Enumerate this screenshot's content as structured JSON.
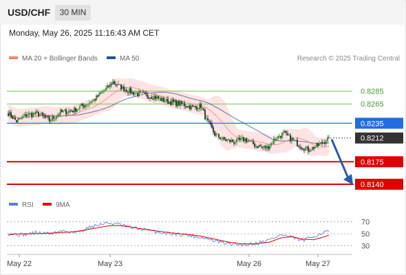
{
  "header": {
    "symbol": "USD/CHF",
    "interval": "30 MIN"
  },
  "timestamp": "Monday, May 26, 2025 11:16:43 AM CET",
  "legend": {
    "ma20_bb": {
      "label": "MA 20 + Bollinger Bands",
      "color": "#f08080"
    },
    "ma50": {
      "label": "MA 50",
      "color": "#2a4f8f"
    }
  },
  "credit": "Research © 2025 Trading Central",
  "rsi_legend": {
    "rsi": {
      "label": "RSI",
      "color": "#5b7fd6"
    },
    "ma9": {
      "label": "9MA",
      "color": "#dd0000"
    }
  },
  "chart_data": {
    "type": "candlestick",
    "price_range": [
      0.8125,
      0.8322
    ],
    "levels": [
      {
        "label": "0.8285",
        "value": 0.8285,
        "kind": "resistance",
        "color": "#7cc05a"
      },
      {
        "label": "0.8265",
        "value": 0.8265,
        "kind": "resistance",
        "color": "#7cc05a"
      },
      {
        "label": "0.8235",
        "value": 0.8235,
        "kind": "pivot",
        "color": "#1f6fe0"
      },
      {
        "label": "0.8212",
        "value": 0.8212,
        "kind": "last",
        "color": "#333333"
      },
      {
        "label": "0.8175",
        "value": 0.8175,
        "kind": "support",
        "color": "#e00000"
      },
      {
        "label": "0.8140",
        "value": 0.814,
        "kind": "support",
        "color": "#e00000"
      }
    ],
    "close_anchors": [
      [
        0,
        0.8251
      ],
      [
        6,
        0.8238
      ],
      [
        14,
        0.8249
      ],
      [
        22,
        0.825
      ],
      [
        30,
        0.8239
      ],
      [
        38,
        0.8252
      ],
      [
        46,
        0.8254
      ],
      [
        54,
        0.8262
      ],
      [
        62,
        0.8271
      ],
      [
        70,
        0.8286
      ],
      [
        76,
        0.8299
      ],
      [
        82,
        0.8291
      ],
      [
        90,
        0.8283
      ],
      [
        98,
        0.8279
      ],
      [
        106,
        0.8276
      ],
      [
        114,
        0.827
      ],
      [
        122,
        0.8266
      ],
      [
        128,
        0.8264
      ],
      [
        134,
        0.8259
      ],
      [
        140,
        0.8262
      ],
      [
        144,
        0.824
      ],
      [
        150,
        0.8218
      ],
      [
        156,
        0.821
      ],
      [
        164,
        0.8206
      ],
      [
        172,
        0.821
      ],
      [
        180,
        0.82
      ],
      [
        188,
        0.8197
      ],
      [
        194,
        0.8211
      ],
      [
        200,
        0.8219
      ],
      [
        206,
        0.821
      ],
      [
        212,
        0.82
      ],
      [
        218,
        0.8194
      ],
      [
        224,
        0.8199
      ],
      [
        230,
        0.8207
      ],
      [
        233,
        0.8212
      ]
    ],
    "forecast": {
      "from_value": 0.8212,
      "to_value": 0.814
    },
    "x_ticks": [
      {
        "label": "May 22",
        "index": 8
      },
      {
        "label": "May 23",
        "index": 74
      },
      {
        "label": "May 26",
        "index": 175
      },
      {
        "label": "May 27",
        "index": 225
      }
    ],
    "rsi": {
      "range": [
        20,
        80
      ],
      "ticks": [
        {
          "label": "70",
          "value": 70
        },
        {
          "label": "50",
          "value": 50
        },
        {
          "label": "30",
          "value": 30
        }
      ],
      "anchors": [
        [
          0,
          50
        ],
        [
          10,
          48
        ],
        [
          20,
          52
        ],
        [
          30,
          50
        ],
        [
          40,
          55
        ],
        [
          50,
          52
        ],
        [
          60,
          62
        ],
        [
          72,
          68
        ],
        [
          80,
          66
        ],
        [
          90,
          60
        ],
        [
          100,
          57
        ],
        [
          110,
          52
        ],
        [
          120,
          50
        ],
        [
          130,
          48
        ],
        [
          140,
          44
        ],
        [
          150,
          38
        ],
        [
          160,
          33
        ],
        [
          170,
          32
        ],
        [
          180,
          34
        ],
        [
          190,
          40
        ],
        [
          198,
          48
        ],
        [
          206,
          44
        ],
        [
          214,
          38
        ],
        [
          222,
          46
        ],
        [
          230,
          53
        ],
        [
          233,
          54
        ]
      ],
      "ma9_anchors": [
        [
          0,
          49
        ],
        [
          10,
          50
        ],
        [
          20,
          50
        ],
        [
          30,
          51
        ],
        [
          40,
          52
        ],
        [
          50,
          54
        ],
        [
          60,
          58
        ],
        [
          72,
          63
        ],
        [
          80,
          64
        ],
        [
          90,
          61
        ],
        [
          100,
          57
        ],
        [
          110,
          54
        ],
        [
          120,
          51
        ],
        [
          130,
          49
        ],
        [
          140,
          46
        ],
        [
          150,
          41
        ],
        [
          160,
          36
        ],
        [
          170,
          33
        ],
        [
          180,
          33
        ],
        [
          190,
          36
        ],
        [
          198,
          43
        ],
        [
          206,
          45
        ],
        [
          214,
          41
        ],
        [
          222,
          40
        ],
        [
          230,
          45
        ],
        [
          233,
          48
        ]
      ]
    }
  }
}
